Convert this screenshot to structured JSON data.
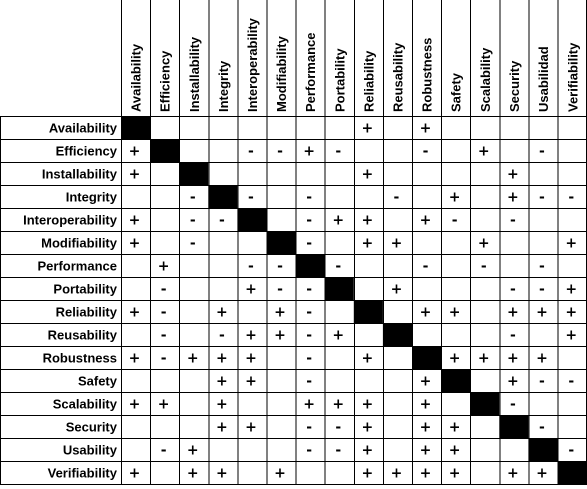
{
  "attributes": [
    "Availability",
    "Efficiency",
    "Installability",
    "Integrity",
    "Interoperability",
    "Modifiability",
    "Performance",
    "Portability",
    "Reliability",
    "Reusability",
    "Robustness",
    "Safety",
    "Scalability",
    "Security",
    "Usabilidad",
    "Verifiability"
  ],
  "row_labels": [
    "Availability",
    "Efficiency",
    "Installability",
    "Integrity",
    "Interoperability",
    "Modifiability",
    "Performance",
    "Portability",
    "Reliability",
    "Reusability",
    "Robustness",
    "Safety",
    "Scalability",
    "Security",
    "Usability",
    "Verifiability"
  ],
  "matrix": [
    [
      "X",
      "",
      "",
      "",
      "",
      "",
      "",
      "",
      "+",
      "",
      "+",
      "",
      "",
      "",
      "",
      ""
    ],
    [
      "+",
      "X",
      "",
      "",
      "-",
      "-",
      "+",
      "-",
      "",
      "",
      "-",
      "",
      "+",
      "",
      "-",
      ""
    ],
    [
      "+",
      "",
      "X",
      "",
      "",
      "",
      "",
      "",
      "+",
      "",
      "",
      "",
      "",
      "+",
      "",
      ""
    ],
    [
      "",
      "",
      "-",
      "X",
      "-",
      "",
      "-",
      "",
      "",
      "-",
      "",
      "+",
      "",
      "+",
      "-",
      "-"
    ],
    [
      "+",
      "",
      "-",
      "-",
      "X",
      "",
      "-",
      "+",
      "+",
      "",
      "+",
      "-",
      "",
      "-",
      "",
      ""
    ],
    [
      "+",
      "",
      "-",
      "",
      "",
      "X",
      "-",
      "",
      "+",
      "+",
      "",
      "",
      "+",
      "",
      "",
      "+"
    ],
    [
      "",
      "+",
      "",
      "",
      "-",
      "-",
      "X",
      "-",
      "",
      "",
      "-",
      "",
      "-",
      "",
      "-",
      ""
    ],
    [
      "",
      "-",
      "",
      "",
      "+",
      "-",
      "-",
      "X",
      "",
      "+",
      "",
      "",
      "",
      "-",
      "-",
      "+"
    ],
    [
      "+",
      "-",
      "",
      "+",
      "",
      "+",
      "-",
      "",
      "X",
      "",
      "+",
      "+",
      "",
      "+",
      "+",
      "+"
    ],
    [
      "",
      "-",
      "",
      "-",
      "+",
      "+",
      "-",
      "+",
      "",
      "X",
      "",
      "",
      "",
      "-",
      "",
      "+"
    ],
    [
      "+",
      "-",
      "+",
      "+",
      "+",
      "",
      "-",
      "",
      "+",
      "",
      "X",
      "+",
      "+",
      "+",
      "+",
      ""
    ],
    [
      "",
      "",
      "",
      "+",
      "+",
      "",
      "-",
      "",
      "",
      "",
      "+",
      "X",
      "",
      "+",
      "-",
      "-"
    ],
    [
      "+",
      "+",
      "",
      "+",
      "",
      "",
      "+",
      "+",
      "+",
      "",
      "+",
      "",
      "X",
      "-",
      "",
      ""
    ],
    [
      "",
      "",
      "",
      "+",
      "+",
      "",
      "-",
      "-",
      "+",
      "",
      "+",
      "+",
      "",
      "X",
      "-",
      ""
    ],
    [
      "",
      "-",
      "+",
      "",
      "",
      "",
      "-",
      "-",
      "+",
      "",
      "+",
      "+",
      "",
      "",
      "X",
      "-"
    ],
    [
      "+",
      "",
      "+",
      "+",
      "",
      "+",
      "",
      "",
      "+",
      "+",
      "+",
      "+",
      "",
      "+",
      "+",
      "X"
    ]
  ]
}
